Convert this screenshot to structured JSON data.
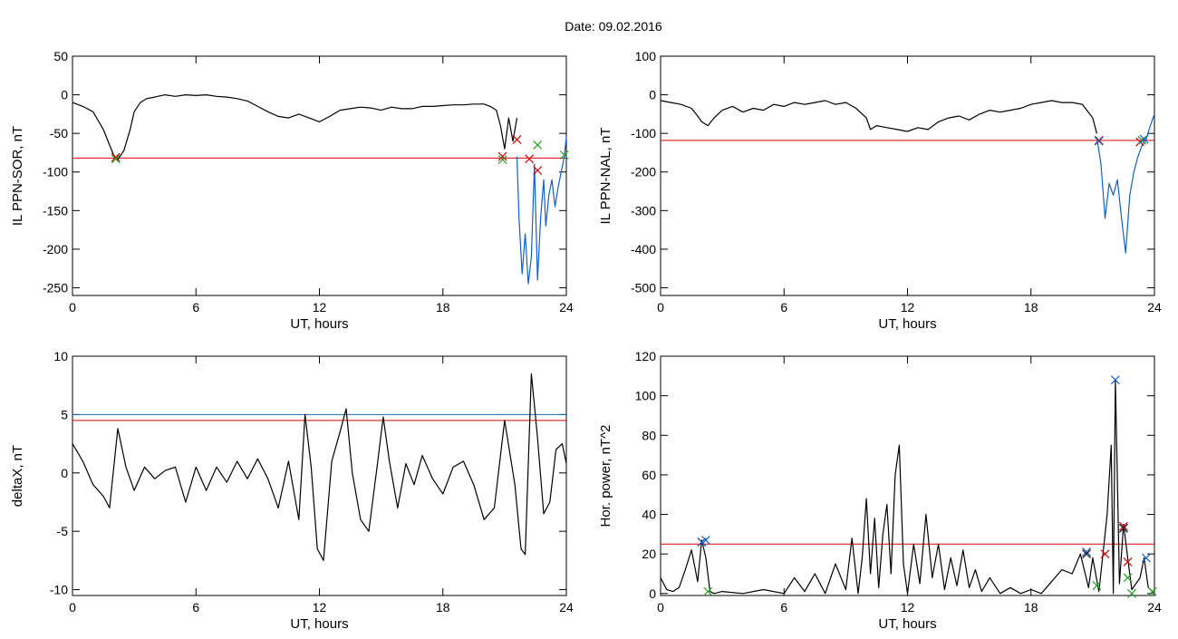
{
  "title": "Date:  09.02.2016",
  "chart_data": [
    {
      "type": "line",
      "panel": "top-left",
      "xlabel": "UT, hours",
      "ylabel": "IL PPN-SOR, nT",
      "xlim": [
        0,
        24
      ],
      "ylim": [
        -260,
        50
      ],
      "x_ticks": [
        0,
        6,
        12,
        18,
        24
      ],
      "y_ticks": [
        50,
        0,
        -50,
        -100,
        -150,
        -200,
        -250
      ],
      "hlines": [
        {
          "y": -82,
          "color": "#e00000"
        }
      ],
      "series": [
        {
          "color": "#000000",
          "x": [
            0,
            0.5,
            1,
            1.5,
            1.8,
            2.0,
            2.2,
            2.5,
            2.8,
            3.0,
            3.3,
            3.6,
            4,
            4.5,
            5,
            5.5,
            6,
            6.5,
            7,
            7.5,
            8,
            8.5,
            9,
            9.5,
            10,
            10.5,
            11,
            11.5,
            12,
            12.5,
            13,
            13.5,
            14,
            14.5,
            15,
            15.5,
            16,
            16.5,
            17,
            17.5,
            18,
            18.5,
            19,
            19.5,
            20,
            20.3,
            20.6,
            20.8,
            21.0,
            21.2,
            21.4,
            21.6
          ],
          "y": [
            -10,
            -15,
            -22,
            -45,
            -65,
            -78,
            -84,
            -72,
            -45,
            -22,
            -10,
            -5,
            -3,
            0,
            -2,
            0,
            -1,
            0,
            -2,
            -3,
            -5,
            -8,
            -15,
            -22,
            -28,
            -30,
            -25,
            -30,
            -35,
            -28,
            -20,
            -18,
            -16,
            -17,
            -20,
            -16,
            -18,
            -18,
            -15,
            -15,
            -14,
            -13,
            -13,
            -12,
            -12,
            -15,
            -20,
            -40,
            -70,
            -30,
            -60,
            -30
          ]
        },
        {
          "color": "#1060d0",
          "x": [
            21.6,
            21.7,
            21.85,
            22.0,
            22.15,
            22.3,
            22.45,
            22.6,
            22.75,
            22.9,
            23.0,
            23.15,
            23.3,
            23.45,
            23.6,
            23.75,
            23.9,
            24.0
          ],
          "y": [
            -80,
            -160,
            -232,
            -180,
            -245,
            -210,
            -90,
            -240,
            -160,
            -110,
            -170,
            -130,
            -110,
            -145,
            -120,
            -100,
            -80,
            -55
          ]
        }
      ],
      "markers": [
        {
          "x": 2.1,
          "y": -81,
          "color": "#e00000"
        },
        {
          "x": 2.1,
          "y": -83,
          "color": "#20a020"
        },
        {
          "x": 20.9,
          "y": -80,
          "color": "#e00000"
        },
        {
          "x": 20.9,
          "y": -84,
          "color": "#20a020"
        },
        {
          "x": 21.6,
          "y": -58,
          "color": "#e00000"
        },
        {
          "x": 22.2,
          "y": -83,
          "color": "#e00000"
        },
        {
          "x": 22.6,
          "y": -98,
          "color": "#e00000"
        },
        {
          "x": 22.6,
          "y": -65,
          "color": "#20a020"
        },
        {
          "x": 23.9,
          "y": -78,
          "color": "#20a020"
        }
      ]
    },
    {
      "type": "line",
      "panel": "top-right",
      "xlabel": "UT, hours",
      "ylabel": "IL PPN-NAL, nT",
      "xlim": [
        0,
        24
      ],
      "ylim": [
        -520,
        100
      ],
      "x_ticks": [
        0,
        6,
        12,
        18,
        24
      ],
      "y_ticks": [
        100,
        0,
        -100,
        -200,
        -300,
        -400,
        -500
      ],
      "hlines": [
        {
          "y": -118,
          "color": "#e00000"
        }
      ],
      "series": [
        {
          "color": "#000000",
          "x": [
            0,
            0.5,
            1,
            1.5,
            1.8,
            2.0,
            2.3,
            2.6,
            3,
            3.5,
            4,
            4.5,
            5,
            5.5,
            6,
            6.5,
            7,
            7.5,
            8,
            8.5,
            9,
            9.5,
            10,
            10.2,
            10.5,
            11,
            11.5,
            12,
            12.5,
            13,
            13.5,
            14,
            14.5,
            15,
            15.5,
            16,
            16.5,
            17,
            17.5,
            18,
            18.5,
            19,
            19.5,
            20,
            20.5,
            21,
            21.2
          ],
          "y": [
            -15,
            -20,
            -25,
            -35,
            -55,
            -70,
            -80,
            -60,
            -40,
            -30,
            -45,
            -35,
            -40,
            -25,
            -30,
            -20,
            -25,
            -20,
            -15,
            -25,
            -20,
            -35,
            -60,
            -90,
            -80,
            -85,
            -90,
            -95,
            -85,
            -90,
            -70,
            -60,
            -55,
            -65,
            -50,
            -40,
            -45,
            -40,
            -35,
            -25,
            -20,
            -15,
            -20,
            -20,
            -25,
            -60,
            -100
          ]
        },
        {
          "color": "#1060d0",
          "x": [
            21.2,
            21.4,
            21.6,
            21.8,
            22.0,
            22.2,
            22.4,
            22.6,
            22.8,
            23.0,
            23.2,
            23.4,
            23.6,
            23.8,
            24.0
          ],
          "y": [
            -110,
            -180,
            -320,
            -230,
            -260,
            -220,
            -320,
            -410,
            -260,
            -200,
            -160,
            -130,
            -115,
            -80,
            -50
          ]
        }
      ],
      "markers": [
        {
          "x": 21.3,
          "y": -118,
          "color": "#e00000"
        },
        {
          "x": 21.3,
          "y": -120,
          "color": "#1060d0"
        },
        {
          "x": 23.3,
          "y": -122,
          "color": "#e00000"
        },
        {
          "x": 23.4,
          "y": -118,
          "color": "#20a020"
        },
        {
          "x": 23.5,
          "y": -115,
          "color": "#1060d0"
        }
      ]
    },
    {
      "type": "line",
      "panel": "bottom-left",
      "xlabel": "UT, hours",
      "ylabel": "deltaX, nT",
      "xlim": [
        0,
        24
      ],
      "ylim": [
        -10.5,
        10
      ],
      "x_ticks": [
        0,
        6,
        12,
        18,
        24
      ],
      "y_ticks": [
        10,
        5,
        0,
        -5,
        -10
      ],
      "hlines": [
        {
          "y": 5,
          "color": "#1070b0"
        },
        {
          "y": 4.5,
          "color": "#e00000"
        }
      ],
      "series": [
        {
          "color": "#000000",
          "x": [
            0,
            0.5,
            1,
            1.5,
            1.8,
            2.2,
            2.6,
            3.0,
            3.5,
            4,
            4.5,
            5,
            5.5,
            6,
            6.5,
            7,
            7.5,
            8,
            8.5,
            9,
            9.5,
            10,
            10.5,
            11,
            11.3,
            11.6,
            11.9,
            12.2,
            12.6,
            13,
            13.3,
            13.6,
            14,
            14.4,
            14.8,
            15.1,
            15.4,
            15.8,
            16.2,
            16.6,
            17,
            17.5,
            18,
            18.5,
            19,
            19.5,
            20,
            20.5,
            21,
            21.5,
            21.8,
            22.0,
            22.3,
            22.6,
            22.9,
            23.2,
            23.5,
            23.8,
            24.0
          ],
          "y": [
            2.5,
            1.0,
            -1.0,
            -2.0,
            -3.0,
            3.8,
            0.5,
            -1.5,
            0.5,
            -0.5,
            0.2,
            0.5,
            -2.5,
            0.5,
            -1.5,
            0.5,
            -0.8,
            1.0,
            -0.5,
            1.2,
            -0.5,
            -3.0,
            1.0,
            -4.0,
            5.0,
            0.5,
            -6.5,
            -7.5,
            1.0,
            3.5,
            5.5,
            0.0,
            -4.0,
            -5.0,
            0.5,
            4.8,
            1.0,
            -3.0,
            0.8,
            -1.0,
            1.5,
            -0.5,
            -1.8,
            0.5,
            1.0,
            -1.0,
            -4.0,
            -3.0,
            4.5,
            -1.0,
            -6.5,
            -7.0,
            8.5,
            3.0,
            -3.5,
            -2.5,
            2.0,
            2.5,
            0.8
          ]
        }
      ],
      "markers": []
    },
    {
      "type": "line",
      "panel": "bottom-right",
      "xlabel": "UT, hours",
      "ylabel": "Hor. power, nT^2",
      "xlim": [
        0,
        24
      ],
      "ylim": [
        -1,
        120
      ],
      "x_ticks": [
        0,
        6,
        12,
        18,
        24
      ],
      "y_ticks": [
        120,
        100,
        80,
        60,
        40,
        20,
        0
      ],
      "hlines": [
        {
          "y": 25,
          "color": "#e00000"
        }
      ],
      "series": [
        {
          "color": "#000000",
          "x": [
            0,
            0.3,
            0.6,
            0.9,
            1.2,
            1.5,
            1.8,
            2.0,
            2.2,
            2.4,
            2.6,
            3.0,
            4.0,
            5.0,
            6.0,
            6.5,
            7.0,
            7.5,
            8.0,
            8.5,
            9.0,
            9.3,
            9.6,
            9.8,
            10.0,
            10.2,
            10.4,
            10.6,
            10.8,
            11.0,
            11.2,
            11.4,
            11.6,
            11.8,
            12.0,
            12.3,
            12.6,
            12.9,
            13.2,
            13.5,
            13.8,
            14.1,
            14.4,
            14.7,
            15.0,
            15.3,
            15.6,
            16.0,
            16.5,
            17.0,
            17.5,
            18.0,
            18.5,
            19.0,
            19.5,
            20.0,
            20.4,
            20.8,
            21.0,
            21.3,
            21.5,
            21.7,
            21.9,
            22.0,
            22.1,
            22.3,
            22.5,
            22.7,
            22.9,
            23.1,
            23.3,
            23.5,
            23.7,
            24.0
          ],
          "y": [
            8,
            2,
            1,
            3,
            12,
            22,
            6,
            27,
            18,
            1,
            0,
            1,
            0,
            2,
            0,
            8,
            1,
            10,
            0,
            15,
            2,
            28,
            0,
            18,
            48,
            10,
            38,
            3,
            30,
            45,
            10,
            60,
            75,
            15,
            0,
            25,
            5,
            40,
            8,
            25,
            2,
            18,
            4,
            22,
            3,
            12,
            1,
            8,
            0,
            3,
            0,
            2,
            0,
            6,
            12,
            10,
            20,
            3,
            18,
            1,
            20,
            40,
            75,
            0,
            108,
            5,
            35,
            18,
            2,
            5,
            8,
            18,
            3,
            0
          ]
        }
      ],
      "markers": [
        {
          "x": 2.0,
          "y": 26,
          "color": "#e00000"
        },
        {
          "x": 2.0,
          "y": 26,
          "color": "#1060d0"
        },
        {
          "x": 2.2,
          "y": 27,
          "color": "#1060d0"
        },
        {
          "x": 2.3,
          "y": 1,
          "color": "#20a020"
        },
        {
          "x": 20.7,
          "y": 21,
          "color": "#e00000"
        },
        {
          "x": 20.7,
          "y": 21,
          "color": "#1060d0"
        },
        {
          "x": 20.7,
          "y": 20,
          "color": "#202020"
        },
        {
          "x": 21.2,
          "y": 4,
          "color": "#20a020"
        },
        {
          "x": 21.6,
          "y": 20,
          "color": "#e00000"
        },
        {
          "x": 22.1,
          "y": 108,
          "color": "#1060d0"
        },
        {
          "x": 22.5,
          "y": 34,
          "color": "#e00000"
        },
        {
          "x": 22.5,
          "y": 33,
          "color": "#1060d0"
        },
        {
          "x": 22.5,
          "y": 33,
          "color": "#202020"
        },
        {
          "x": 22.7,
          "y": 16,
          "color": "#e00000"
        },
        {
          "x": 22.7,
          "y": 8,
          "color": "#20a020"
        },
        {
          "x": 22.9,
          "y": 0,
          "color": "#20a020"
        },
        {
          "x": 23.6,
          "y": 18,
          "color": "#1060d0"
        },
        {
          "x": 23.9,
          "y": 1,
          "color": "#20a020"
        }
      ]
    }
  ]
}
